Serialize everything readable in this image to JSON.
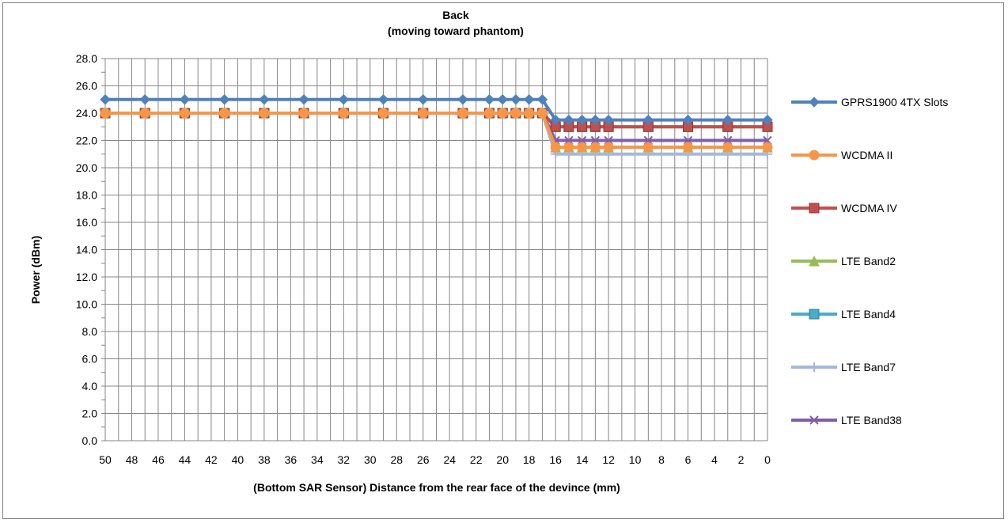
{
  "chart_data": {
    "type": "line",
    "title": "Back",
    "subtitle": "(moving toward phantom)",
    "xlabel": "(Bottom SAR Sensor) Distance from the rear face of the devince (mm)",
    "ylabel": "Power (dBm)",
    "xlim": [
      50,
      0
    ],
    "ylim": [
      0,
      28
    ],
    "y_ticks": [
      "0.0",
      "2.0",
      "4.0",
      "6.0",
      "8.0",
      "10.0",
      "12.0",
      "14.0",
      "16.0",
      "18.0",
      "20.0",
      "22.0",
      "24.0",
      "26.0",
      "28.0"
    ],
    "x_ticks": [
      50,
      48,
      46,
      44,
      42,
      40,
      38,
      36,
      34,
      32,
      30,
      28,
      26,
      24,
      22,
      20,
      18,
      16,
      14,
      12,
      10,
      8,
      6,
      4,
      2,
      0
    ],
    "grid": true,
    "legend_position": "right",
    "x": [
      50,
      47,
      44,
      41,
      38,
      35,
      32,
      29,
      26,
      23,
      21,
      20,
      19,
      18,
      17,
      16,
      15,
      14,
      13,
      12,
      9,
      6,
      3,
      0
    ],
    "series": [
      {
        "name": "GPRS1900 4TX Slots",
        "color": "#4f81bd",
        "marker": "diamond",
        "values": [
          25,
          25,
          25,
          25,
          25,
          25,
          25,
          25,
          25,
          25,
          25,
          25,
          25,
          25,
          25,
          23.5,
          23.5,
          23.5,
          23.5,
          23.5,
          23.5,
          23.5,
          23.5,
          23.5
        ]
      },
      {
        "name": "WCDMA II",
        "color": "#f79646",
        "marker": "circle",
        "values": [
          24,
          24,
          24,
          24,
          24,
          24,
          24,
          24,
          24,
          24,
          24,
          24,
          24,
          24,
          24,
          21.5,
          21.5,
          21.5,
          21.5,
          21.5,
          21.5,
          21.5,
          21.5,
          21.5
        ]
      },
      {
        "name": "WCDMA IV",
        "color": "#c0504d",
        "marker": "square",
        "values": [
          24,
          24,
          24,
          24,
          24,
          24,
          24,
          24,
          24,
          24,
          24,
          24,
          24,
          24,
          24,
          23,
          23,
          23,
          23,
          23,
          23,
          23,
          23,
          23
        ]
      },
      {
        "name": "LTE Band2",
        "color": "#9bbb59",
        "marker": "triangle",
        "values": [
          24,
          24,
          24,
          24,
          24,
          24,
          24,
          24,
          24,
          24,
          24,
          24,
          24,
          24,
          24,
          21.5,
          21.5,
          21.5,
          21.5,
          21.5,
          21.5,
          21.5,
          21.5,
          21.5
        ]
      },
      {
        "name": "LTE Band4",
        "color": "#4bacc6",
        "marker": "square",
        "values": [
          24,
          24,
          24,
          24,
          24,
          24,
          24,
          24,
          24,
          24,
          24,
          24,
          24,
          24,
          24,
          23,
          23,
          23,
          23,
          23,
          23,
          23,
          23,
          23
        ]
      },
      {
        "name": "LTE Band7",
        "color": "#a5b8db",
        "marker": "plus",
        "values": [
          24,
          24,
          24,
          24,
          24,
          24,
          24,
          24,
          24,
          24,
          24,
          24,
          24,
          24,
          24,
          21,
          21,
          21,
          21,
          21,
          21,
          21,
          21,
          21
        ]
      },
      {
        "name": "LTE Band38",
        "color": "#7f5fa8",
        "marker": "x",
        "values": [
          24,
          24,
          24,
          24,
          24,
          24,
          24,
          24,
          24,
          24,
          24,
          24,
          24,
          24,
          24,
          22,
          22,
          22,
          22,
          22,
          22,
          22,
          22,
          22
        ]
      }
    ]
  }
}
